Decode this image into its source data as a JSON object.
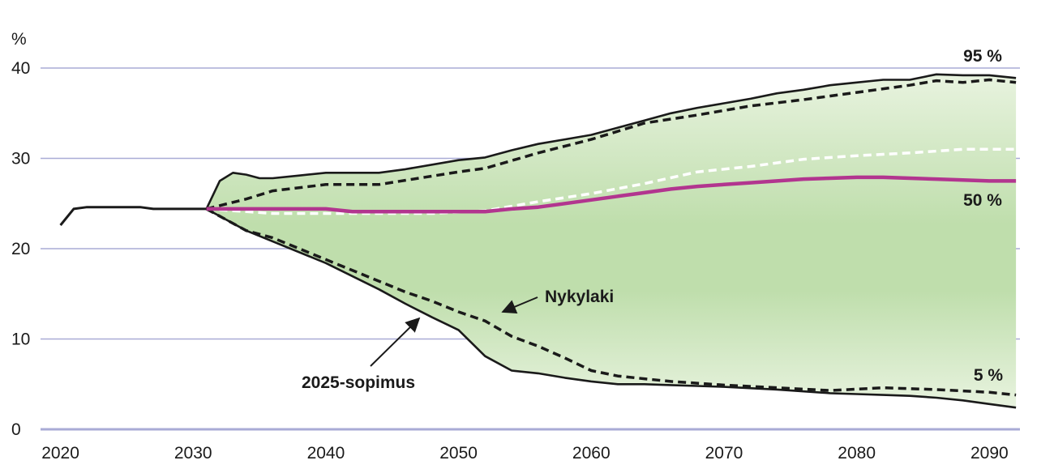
{
  "chart_data": {
    "type": "area",
    "title": "",
    "xlabel": "",
    "ylabel": "%",
    "xlim": [
      2018.5,
      2092.3
    ],
    "ylim": [
      0,
      40
    ],
    "x_ticks": [
      "2020",
      "2030",
      "2040",
      "2050",
      "2060",
      "2070",
      "2080",
      "2090"
    ],
    "y_ticks": [
      "0",
      "10",
      "20",
      "30",
      "40"
    ],
    "grid": true,
    "colors": {
      "grid": "#a9abd6",
      "band": "#bfdeac",
      "band_light": "#e8f3df",
      "median": "#b2358f",
      "lines": "#1a1a1a",
      "nykylaki_median": "#ffffff"
    },
    "history": {
      "x": [
        2020,
        2021,
        2022,
        2023,
        2024,
        2025,
        2026,
        2027,
        2028,
        2029,
        2030,
        2031
      ],
      "y": [
        22.6,
        24.4,
        24.6,
        24.6,
        24.6,
        24.6,
        24.6,
        24.4,
        24.4,
        24.4,
        24.4,
        24.4
      ]
    },
    "series": [
      {
        "name": "95 %",
        "scenario": "2025-sopimus",
        "x": [
          2031,
          2032,
          2033,
          2034,
          2035,
          2036,
          2038,
          2040,
          2044,
          2046,
          2050,
          2052,
          2054,
          2056,
          2058,
          2060,
          2062,
          2064,
          2066,
          2068,
          2070,
          2072,
          2074,
          2076,
          2078,
          2080,
          2082,
          2084,
          2086,
          2088,
          2090,
          2092
        ],
        "values": [
          24.4,
          27.5,
          28.4,
          28.2,
          27.8,
          27.8,
          28.1,
          28.4,
          28.4,
          28.8,
          29.8,
          30.1,
          30.9,
          31.6,
          32.1,
          32.6,
          33.4,
          34.2,
          35.0,
          35.6,
          36.1,
          36.6,
          37.2,
          37.6,
          38.1,
          38.4,
          38.7,
          38.7,
          39.3,
          39.2,
          39.2,
          38.9
        ]
      },
      {
        "name": "95 %",
        "scenario": "Nykylaki",
        "x": [
          2031,
          2034,
          2036,
          2040,
          2044,
          2050,
          2052,
          2056,
          2060,
          2064,
          2068,
          2072,
          2076,
          2080,
          2084,
          2086,
          2088,
          2090,
          2092
        ],
        "values": [
          24.4,
          25.5,
          26.4,
          27.1,
          27.1,
          28.5,
          28.9,
          30.6,
          32.1,
          33.9,
          34.8,
          35.8,
          36.5,
          37.3,
          38.1,
          38.6,
          38.4,
          38.7,
          38.4
        ]
      },
      {
        "name": "50 %",
        "scenario": "2025-sopimus",
        "x": [
          2031,
          2040,
          2042,
          2046,
          2050,
          2052,
          2054,
          2056,
          2058,
          2060,
          2062,
          2064,
          2066,
          2068,
          2070,
          2072,
          2074,
          2076,
          2078,
          2080,
          2082,
          2084,
          2086,
          2088,
          2090,
          2092
        ],
        "values": [
          24.4,
          24.4,
          24.1,
          24.1,
          24.1,
          24.1,
          24.4,
          24.6,
          25.0,
          25.4,
          25.8,
          26.2,
          26.6,
          26.9,
          27.1,
          27.3,
          27.5,
          27.7,
          27.8,
          27.9,
          27.9,
          27.8,
          27.7,
          27.6,
          27.5,
          27.5
        ]
      },
      {
        "name": "50 %",
        "scenario": "Nykylaki",
        "x": [
          2031,
          2036,
          2040,
          2044,
          2048,
          2052,
          2056,
          2060,
          2064,
          2068,
          2072,
          2076,
          2080,
          2084,
          2088,
          2092
        ],
        "values": [
          24.4,
          23.9,
          23.9,
          23.9,
          23.9,
          24.2,
          25.2,
          26.1,
          27.2,
          28.5,
          29.1,
          29.9,
          30.3,
          30.6,
          31.0,
          31.0
        ]
      },
      {
        "name": "5 %",
        "scenario": "2025-sopimus",
        "x": [
          2031,
          2034,
          2036,
          2040,
          2044,
          2046,
          2048,
          2050,
          2052,
          2054,
          2056,
          2058,
          2060,
          2062,
          2064,
          2066,
          2068,
          2070,
          2074,
          2078,
          2080,
          2082,
          2084,
          2086,
          2088,
          2090,
          2092
        ],
        "values": [
          24.4,
          22.0,
          20.8,
          18.4,
          15.5,
          13.9,
          12.4,
          11.0,
          8.1,
          6.5,
          6.2,
          5.7,
          5.3,
          5.0,
          5.0,
          4.9,
          4.8,
          4.7,
          4.4,
          4.0,
          3.9,
          3.8,
          3.7,
          3.5,
          3.2,
          2.8,
          2.4
        ]
      },
      {
        "name": "5 %",
        "scenario": "Nykylaki",
        "x": [
          2031,
          2034,
          2036,
          2040,
          2044,
          2046,
          2048,
          2050,
          2052,
          2054,
          2056,
          2058,
          2060,
          2062,
          2064,
          2066,
          2068,
          2070,
          2074,
          2078,
          2082,
          2086,
          2090,
          2092
        ],
        "values": [
          24.4,
          22.0,
          21.2,
          18.8,
          16.4,
          15.2,
          14.2,
          13.0,
          12.0,
          10.3,
          9.2,
          7.9,
          6.5,
          5.9,
          5.6,
          5.3,
          5.1,
          4.9,
          4.6,
          4.3,
          4.6,
          4.4,
          4.1,
          3.8
        ]
      }
    ],
    "annotations": {
      "p95": "95 %",
      "p50": "50 %",
      "p5": "5 %",
      "nykylaki": "Nykylaki",
      "sopimus": "2025-sopimus"
    }
  }
}
